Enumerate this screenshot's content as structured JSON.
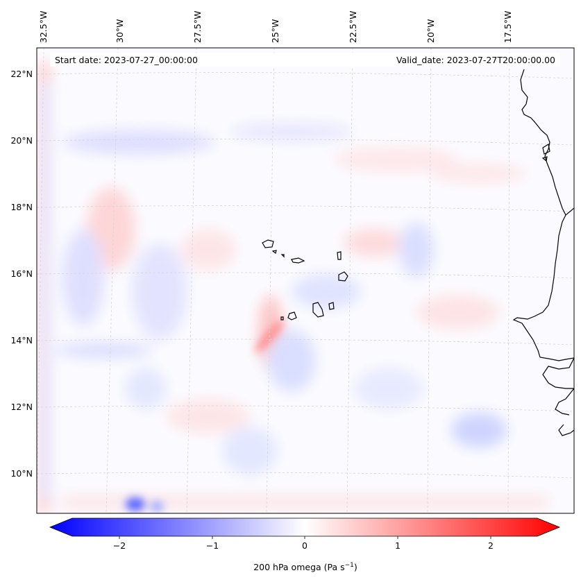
{
  "map": {
    "start_date": "Start date: 2023-07-27_00:00:00",
    "valid_date": "Valid_date: 2023-07-27T20:00:00.00",
    "longitude_labels": [
      "32.5°W",
      "30°W",
      "27.5°W",
      "25°W",
      "22.5°W",
      "20°W",
      "17.5°W"
    ],
    "latitude_labels": [
      "22°N",
      "20°N",
      "18°N",
      "16°N",
      "14°N",
      "12°N",
      "10°N"
    ],
    "field": "200 hPa omega",
    "coastline_color": "#000000"
  },
  "colorbar": {
    "label_main": "200 hPa omega (Pa s",
    "label_exp": "−1",
    "label_close": ")",
    "ticks": [
      "−2",
      "−1",
      "0",
      "1",
      "2"
    ],
    "range": [
      -2.8,
      2.8
    ],
    "min_color": "#0000ff",
    "mid_color": "#ffffff",
    "max_color": "#ff0000"
  }
}
